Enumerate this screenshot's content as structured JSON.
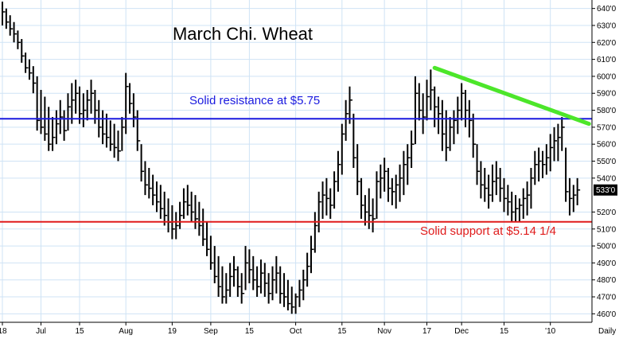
{
  "chart_data": {
    "type": "ohlc",
    "title": "March Chi. Wheat",
    "timeframe_label": "Daily",
    "current_price_label": "533'0",
    "ylim": [
      455,
      645
    ],
    "y_ticks": [
      {
        "value": 640,
        "label": "640'0"
      },
      {
        "value": 630,
        "label": "630'0"
      },
      {
        "value": 620,
        "label": "620'0"
      },
      {
        "value": 610,
        "label": "610'0"
      },
      {
        "value": 600,
        "label": "600'0"
      },
      {
        "value": 590,
        "label": "590'0"
      },
      {
        "value": 580,
        "label": "580'0"
      },
      {
        "value": 570,
        "label": "570'0"
      },
      {
        "value": 560,
        "label": "560'0"
      },
      {
        "value": 550,
        "label": "550'0"
      },
      {
        "value": 540,
        "label": "540'0"
      },
      {
        "value": 520,
        "label": "520'0"
      },
      {
        "value": 510,
        "label": "510'0"
      },
      {
        "value": 500,
        "label": "500'0"
      },
      {
        "value": 490,
        "label": "490'0"
      },
      {
        "value": 480,
        "label": "480'0"
      },
      {
        "value": 470,
        "label": "470'0"
      },
      {
        "value": 460,
        "label": "460'0"
      }
    ],
    "x_ticks": [
      {
        "index": 0,
        "label": "18"
      },
      {
        "index": 10,
        "label": "Jul"
      },
      {
        "index": 20,
        "label": "15"
      },
      {
        "index": 32,
        "label": "Aug"
      },
      {
        "index": 44,
        "label": "19"
      },
      {
        "index": 54,
        "label": "Sep"
      },
      {
        "index": 64,
        "label": "15"
      },
      {
        "index": 76,
        "label": "Oct"
      },
      {
        "index": 88,
        "label": "15"
      },
      {
        "index": 99,
        "label": "Nov"
      },
      {
        "index": 110,
        "label": "17"
      },
      {
        "index": 119,
        "label": "Dec"
      },
      {
        "index": 130,
        "label": "15"
      },
      {
        "index": 142,
        "label": "'10"
      }
    ],
    "resistance": {
      "value": 575,
      "label": "Solid resistance at $5.75",
      "color": "#1a1adf"
    },
    "support": {
      "value": 514.25,
      "label": "Solid support at $5.14 1/4",
      "color": "#e01b1b"
    },
    "trendline": {
      "start": {
        "index": 112,
        "value": 605
      },
      "end": {
        "index": 152,
        "value": 572
      },
      "color": "#4ce62a"
    },
    "bars": [
      [
        644,
        630,
        638
      ],
      [
        640,
        628,
        632
      ],
      [
        636,
        624,
        628
      ],
      [
        632,
        620,
        625
      ],
      [
        627,
        616,
        620
      ],
      [
        622,
        608,
        612
      ],
      [
        614,
        602,
        605
      ],
      [
        610,
        598,
        602
      ],
      [
        606,
        590,
        596
      ],
      [
        600,
        568,
        574
      ],
      [
        592,
        566,
        570
      ],
      [
        588,
        562,
        566
      ],
      [
        582,
        556,
        560
      ],
      [
        576,
        556,
        564
      ],
      [
        580,
        560,
        572
      ],
      [
        586,
        566,
        576
      ],
      [
        580,
        562,
        568
      ],
      [
        590,
        568,
        582
      ],
      [
        596,
        572,
        586
      ],
      [
        598,
        578,
        590
      ],
      [
        594,
        572,
        578
      ],
      [
        590,
        570,
        580
      ],
      [
        592,
        574,
        586
      ],
      [
        598,
        578,
        590
      ],
      [
        592,
        572,
        580
      ],
      [
        586,
        564,
        570
      ],
      [
        580,
        560,
        566
      ],
      [
        578,
        558,
        564
      ],
      [
        574,
        556,
        560
      ],
      [
        572,
        552,
        558
      ],
      [
        568,
        550,
        556
      ],
      [
        576,
        556,
        570
      ],
      [
        602,
        566,
        594
      ],
      [
        596,
        578,
        584
      ],
      [
        590,
        570,
        576
      ],
      [
        580,
        556,
        562
      ],
      [
        560,
        538,
        544
      ],
      [
        550,
        530,
        536
      ],
      [
        546,
        528,
        534
      ],
      [
        542,
        524,
        530
      ],
      [
        538,
        520,
        526
      ],
      [
        536,
        516,
        522
      ],
      [
        532,
        512,
        518
      ],
      [
        528,
        508,
        514
      ],
      [
        524,
        504,
        510
      ],
      [
        520,
        504,
        512
      ],
      [
        526,
        510,
        518
      ],
      [
        534,
        516,
        526
      ],
      [
        536,
        518,
        524
      ],
      [
        532,
        514,
        520
      ],
      [
        530,
        510,
        516
      ],
      [
        526,
        506,
        512
      ],
      [
        522,
        500,
        504
      ],
      [
        514,
        494,
        498
      ],
      [
        506,
        486,
        490
      ],
      [
        500,
        478,
        482
      ],
      [
        494,
        470,
        476
      ],
      [
        488,
        466,
        470
      ],
      [
        484,
        466,
        474
      ],
      [
        490,
        470,
        482
      ],
      [
        494,
        476,
        486
      ],
      [
        488,
        470,
        476
      ],
      [
        484,
        466,
        472
      ],
      [
        500,
        474,
        490
      ],
      [
        498,
        478,
        486
      ],
      [
        494,
        474,
        480
      ],
      [
        488,
        470,
        476
      ],
      [
        492,
        472,
        484
      ],
      [
        490,
        470,
        478
      ],
      [
        484,
        466,
        472
      ],
      [
        488,
        468,
        480
      ],
      [
        494,
        472,
        484
      ],
      [
        488,
        466,
        472
      ],
      [
        484,
        464,
        470
      ],
      [
        480,
        462,
        466
      ],
      [
        476,
        460,
        464
      ],
      [
        472,
        460,
        470
      ],
      [
        480,
        464,
        474
      ],
      [
        486,
        468,
        480
      ],
      [
        496,
        476,
        488
      ],
      [
        506,
        484,
        498
      ],
      [
        520,
        496,
        512
      ],
      [
        532,
        508,
        526
      ],
      [
        538,
        516,
        530
      ],
      [
        540,
        518,
        528
      ],
      [
        534,
        516,
        524
      ],
      [
        544,
        522,
        538
      ],
      [
        556,
        532,
        548
      ],
      [
        572,
        542,
        566
      ],
      [
        586,
        562,
        578
      ],
      [
        594,
        572,
        586
      ],
      [
        578,
        546,
        552
      ],
      [
        560,
        530,
        538
      ],
      [
        540,
        516,
        524
      ],
      [
        530,
        512,
        520
      ],
      [
        534,
        510,
        518
      ],
      [
        528,
        508,
        516
      ],
      [
        544,
        516,
        538
      ],
      [
        548,
        528,
        540
      ],
      [
        552,
        532,
        544
      ],
      [
        546,
        526,
        534
      ],
      [
        540,
        524,
        532
      ],
      [
        542,
        522,
        536
      ],
      [
        548,
        526,
        540
      ],
      [
        556,
        530,
        548
      ],
      [
        560,
        536,
        552
      ],
      [
        568,
        546,
        560
      ],
      [
        600,
        560,
        590
      ],
      [
        596,
        574,
        580
      ],
      [
        590,
        566,
        576
      ],
      [
        598,
        574,
        588
      ],
      [
        604,
        580,
        592
      ],
      [
        594,
        570,
        582
      ],
      [
        588,
        566,
        578
      ],
      [
        586,
        556,
        566
      ],
      [
        580,
        550,
        558
      ],
      [
        576,
        556,
        570
      ],
      [
        580,
        560,
        574
      ],
      [
        588,
        566,
        580
      ],
      [
        596,
        574,
        590
      ],
      [
        592,
        570,
        580
      ],
      [
        586,
        564,
        574
      ],
      [
        578,
        552,
        560
      ],
      [
        560,
        536,
        544
      ],
      [
        550,
        528,
        536
      ],
      [
        546,
        526,
        534
      ],
      [
        542,
        522,
        530
      ],
      [
        548,
        526,
        538
      ],
      [
        550,
        530,
        540
      ],
      [
        546,
        526,
        534
      ],
      [
        540,
        520,
        528
      ],
      [
        536,
        518,
        526
      ],
      [
        532,
        514,
        520
      ],
      [
        530,
        514,
        522
      ],
      [
        528,
        514,
        524
      ],
      [
        534,
        516,
        528
      ],
      [
        538,
        518,
        530
      ],
      [
        546,
        522,
        540
      ],
      [
        556,
        536,
        548
      ],
      [
        558,
        538,
        550
      ],
      [
        556,
        540,
        548
      ],
      [
        560,
        542,
        552
      ],
      [
        566,
        544,
        558
      ],
      [
        570,
        550,
        562
      ],
      [
        572,
        550,
        564
      ],
      [
        576,
        556,
        570
      ],
      [
        558,
        526,
        532
      ],
      [
        540,
        518,
        528
      ],
      [
        536,
        520,
        530
      ],
      [
        540,
        524,
        533
      ]
    ]
  }
}
